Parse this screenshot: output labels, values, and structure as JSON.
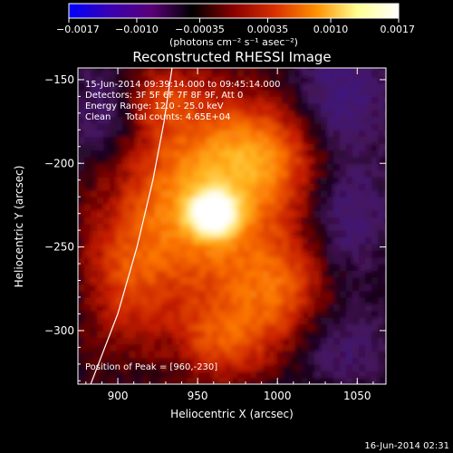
{
  "chart_data": {
    "type": "heatmap",
    "title": "Reconstructed RHESSI Image",
    "xlabel": "Heliocentric X (arcsec)",
    "ylabel": "Heliocentric Y (arcsec)",
    "xlim": [
      875,
      1068
    ],
    "ylim": [
      -332,
      -143
    ],
    "x_ticks": [
      900,
      950,
      1000,
      1050
    ],
    "x_tick_labels": [
      "900",
      "950",
      "1000",
      "1050"
    ],
    "y_ticks": [
      -150,
      -200,
      -250,
      -300
    ],
    "y_tick_labels": [
      "−150",
      "−200",
      "−250",
      "−300"
    ],
    "colorbar": {
      "range": [
        -0.0017,
        0.0017
      ],
      "ticks": [
        -0.0017,
        -0.001,
        -0.00035,
        0.00035,
        0.001,
        0.0017
      ],
      "tick_labels": [
        "−0.0017",
        "−0.0010",
        "−0.00035",
        "0.00035",
        "0.0010",
        "0.0017"
      ],
      "unit_label": "(photons cm⁻² s⁻¹ asec⁻²)",
      "colormap": [
        "#0000ff",
        "#3a00b0",
        "#5a0078",
        "#000000",
        "#8a0000",
        "#d83000",
        "#ff9000",
        "#ffff90",
        "#ffffff"
      ]
    },
    "peak": {
      "x": 960,
      "y": -230
    },
    "limb_curve": [
      {
        "x": 883,
        "y": -332
      },
      {
        "x": 900,
        "y": -290
      },
      {
        "x": 912,
        "y": -250
      },
      {
        "x": 922,
        "y": -210
      },
      {
        "x": 929,
        "y": -175
      },
      {
        "x": 934,
        "y": -143
      }
    ],
    "annotations": [
      "15-Jun-2014 09:39:14.000 to 09:45:14.000",
      "Detectors: 3F 5F 6F 7F 8F 9F, Att 0",
      "Energy Range: 12.0 - 25.0 keV",
      "Clean     Total counts: 4.65E+04"
    ],
    "peak_label": "Position of Peak = [960,-230]",
    "timestamp": "16-Jun-2014 02:31"
  }
}
